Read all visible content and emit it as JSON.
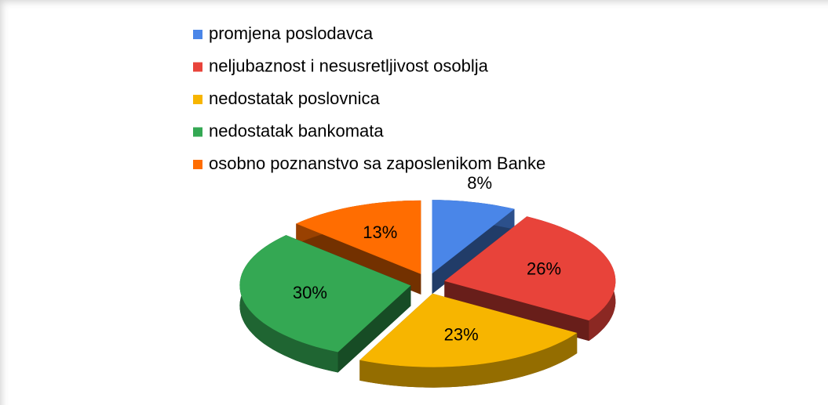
{
  "chart_data": {
    "type": "pie",
    "categories": [
      "promjena poslodavca",
      "neljubaznost i nesusretljivost osoblja",
      "nedostatak poslovnica",
      "nedostatak bankomata",
      "osobno poznanstvo sa zaposlenikom Banke"
    ],
    "values": [
      8,
      26,
      23,
      30,
      13
    ],
    "value_labels": [
      "8%",
      "26%",
      "23%",
      "30%",
      "13%"
    ],
    "colors": [
      "#4a86e8",
      "#e8433a",
      "#f7b500",
      "#34a853",
      "#ff6d01"
    ],
    "legend": "top"
  }
}
